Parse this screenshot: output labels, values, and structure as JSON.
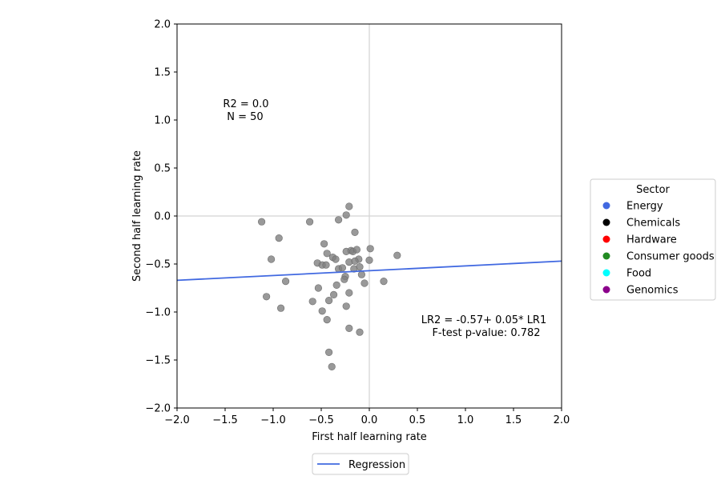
{
  "chart_data": {
    "type": "scatter",
    "xlabel": "First half learning rate",
    "ylabel": "Second half learning rate",
    "xlim": [
      -2.0,
      2.0
    ],
    "ylim": [
      -2.0,
      2.0
    ],
    "xticks": [
      "−2.0",
      "−1.5",
      "−1.0",
      "−0.5",
      "0.0",
      "0.5",
      "1.0",
      "1.5",
      "2.0"
    ],
    "yticks": [
      "−2.0",
      "−1.5",
      "−1.0",
      "−0.5",
      "0.0",
      "0.5",
      "1.0",
      "1.5",
      "2.0"
    ],
    "reference_lines": {
      "x": 0.0,
      "y": 0.0,
      "color": "#d3d3d3"
    },
    "point_color": "#808080",
    "points": [
      [
        -1.12,
        -0.06
      ],
      [
        -0.62,
        -0.06
      ],
      [
        -0.32,
        -0.04
      ],
      [
        -0.24,
        0.01
      ],
      [
        -0.21,
        0.1
      ],
      [
        -0.94,
        -0.23
      ],
      [
        -0.15,
        -0.17
      ],
      [
        -0.47,
        -0.29
      ],
      [
        -1.02,
        -0.45
      ],
      [
        -0.44,
        -0.39
      ],
      [
        -0.38,
        -0.43
      ],
      [
        -0.35,
        -0.45
      ],
      [
        -0.54,
        -0.49
      ],
      [
        -0.49,
        -0.51
      ],
      [
        -0.45,
        -0.51
      ],
      [
        -0.32,
        -0.55
      ],
      [
        -0.28,
        -0.54
      ],
      [
        -0.24,
        -0.37
      ],
      [
        -0.19,
        -0.36
      ],
      [
        -0.17,
        -0.37
      ],
      [
        -0.13,
        -0.35
      ],
      [
        -0.11,
        -0.45
      ],
      [
        -0.21,
        -0.48
      ],
      [
        -0.15,
        -0.47
      ],
      [
        -0.1,
        -0.53
      ],
      [
        -0.16,
        -0.55
      ],
      [
        0.01,
        -0.34
      ],
      [
        0.0,
        -0.46
      ],
      [
        0.29,
        -0.41
      ],
      [
        -0.08,
        -0.61
      ],
      [
        -0.25,
        -0.63
      ],
      [
        -0.26,
        -0.66
      ],
      [
        -0.05,
        -0.7
      ],
      [
        0.15,
        -0.68
      ],
      [
        -0.87,
        -0.68
      ],
      [
        -0.34,
        -0.72
      ],
      [
        -0.53,
        -0.75
      ],
      [
        -0.21,
        -0.8
      ],
      [
        -0.37,
        -0.82
      ],
      [
        -1.07,
        -0.84
      ],
      [
        -0.42,
        -0.88
      ],
      [
        -0.59,
        -0.89
      ],
      [
        -0.24,
        -0.94
      ],
      [
        -0.92,
        -0.96
      ],
      [
        -0.49,
        -0.99
      ],
      [
        -0.44,
        -1.08
      ],
      [
        -0.21,
        -1.17
      ],
      [
        -0.1,
        -1.21
      ],
      [
        -0.42,
        -1.42
      ],
      [
        -0.39,
        -1.57
      ]
    ],
    "regression": {
      "name": "Regression",
      "intercept": -0.57,
      "slope": 0.05,
      "color": "#4169e1"
    },
    "annotations": {
      "r2": "R2 = 0.0",
      "n": "N = 50",
      "equation": "LR2 = -0.57+ 0.05* LR1",
      "ftest": "F-test p-value: 0.782"
    },
    "sector_legend": {
      "title": "Sector",
      "placement": "right",
      "entries": [
        {
          "name": "Energy",
          "color": "#4169e1"
        },
        {
          "name": "Chemicals",
          "color": "#000000"
        },
        {
          "name": "Hardware",
          "color": "#ff0000"
        },
        {
          "name": "Consumer goods",
          "color": "#228b22"
        },
        {
          "name": "Food",
          "color": "#00ffff"
        },
        {
          "name": "Genomics",
          "color": "#8b008b"
        }
      ]
    },
    "bottom_legend": {
      "placement": "bottom",
      "label": "Regression"
    }
  }
}
